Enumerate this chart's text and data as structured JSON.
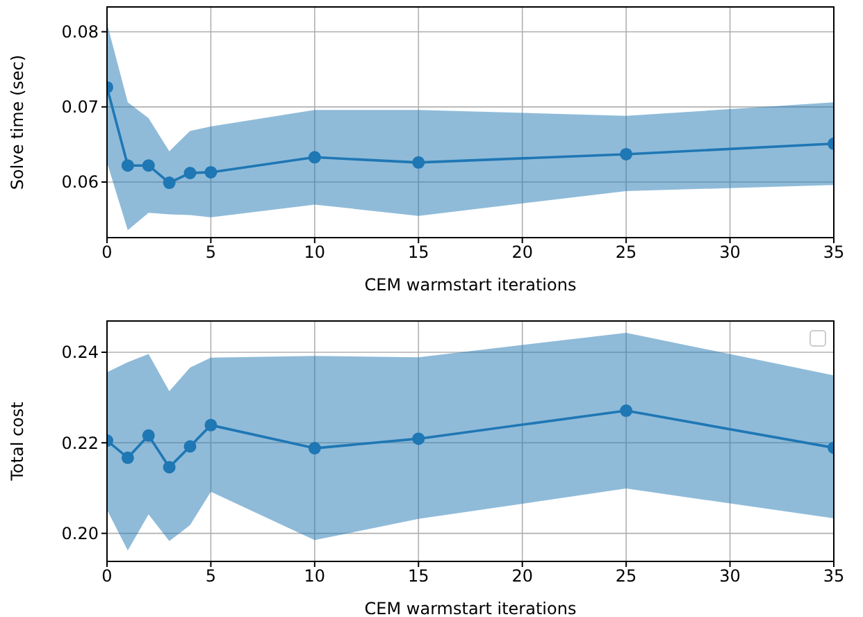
{
  "chart_data": [
    {
      "type": "line",
      "xlabel": "CEM warmstart iterations",
      "ylabel": "Solve time (sec)",
      "x": [
        0,
        1,
        2,
        3,
        4,
        5,
        10,
        15,
        25,
        35
      ],
      "xlim": [
        0,
        35
      ],
      "xticks": [
        0,
        5,
        10,
        15,
        20,
        25,
        30,
        35
      ],
      "ylim": [
        0.0526,
        0.0833
      ],
      "yticks": [
        0.06,
        0.07,
        0.08
      ],
      "grid": true,
      "marker": "circle",
      "series": [
        {
          "color": "#1f77b4",
          "values": [
            0.0726,
            0.0622,
            0.0622,
            0.0599,
            0.0612,
            0.0613,
            0.0633,
            0.0626,
            0.0637,
            0.0651
          ],
          "lower": [
            0.0626,
            0.0536,
            0.0559,
            0.0557,
            0.0556,
            0.0553,
            0.057,
            0.0555,
            0.0588,
            0.0596
          ],
          "upper": [
            0.0811,
            0.0706,
            0.0685,
            0.0641,
            0.0668,
            0.0674,
            0.0696,
            0.0696,
            0.0688,
            0.0706
          ]
        }
      ]
    },
    {
      "type": "line",
      "xlabel": "CEM warmstart iterations",
      "ylabel": "Total cost",
      "x": [
        0,
        1,
        2,
        3,
        4,
        5,
        10,
        15,
        25,
        35
      ],
      "xlim": [
        0,
        35
      ],
      "xticks": [
        0,
        5,
        10,
        15,
        20,
        25,
        30,
        35
      ],
      "ylim": [
        0.1938,
        0.2469
      ],
      "yticks": [
        {
          "value": 0.2,
          "label": "0.20"
        },
        0.22,
        0.24
      ],
      "grid": true,
      "marker": "circle",
      "series": [
        {
          "color": "#1f77b4",
          "values": [
            0.2205,
            0.2167,
            0.2216,
            0.2146,
            0.2192,
            0.2239,
            0.2188,
            0.2209,
            0.2271,
            0.2189
          ],
          "lower": [
            0.2052,
            0.1962,
            0.2042,
            0.1983,
            0.2018,
            0.2092,
            0.1985,
            0.2032,
            0.2099,
            0.2033
          ],
          "upper": [
            0.2356,
            0.2378,
            0.2396,
            0.2314,
            0.2366,
            0.2388,
            0.2392,
            0.2389,
            0.2443,
            0.2349
          ]
        }
      ]
    }
  ]
}
